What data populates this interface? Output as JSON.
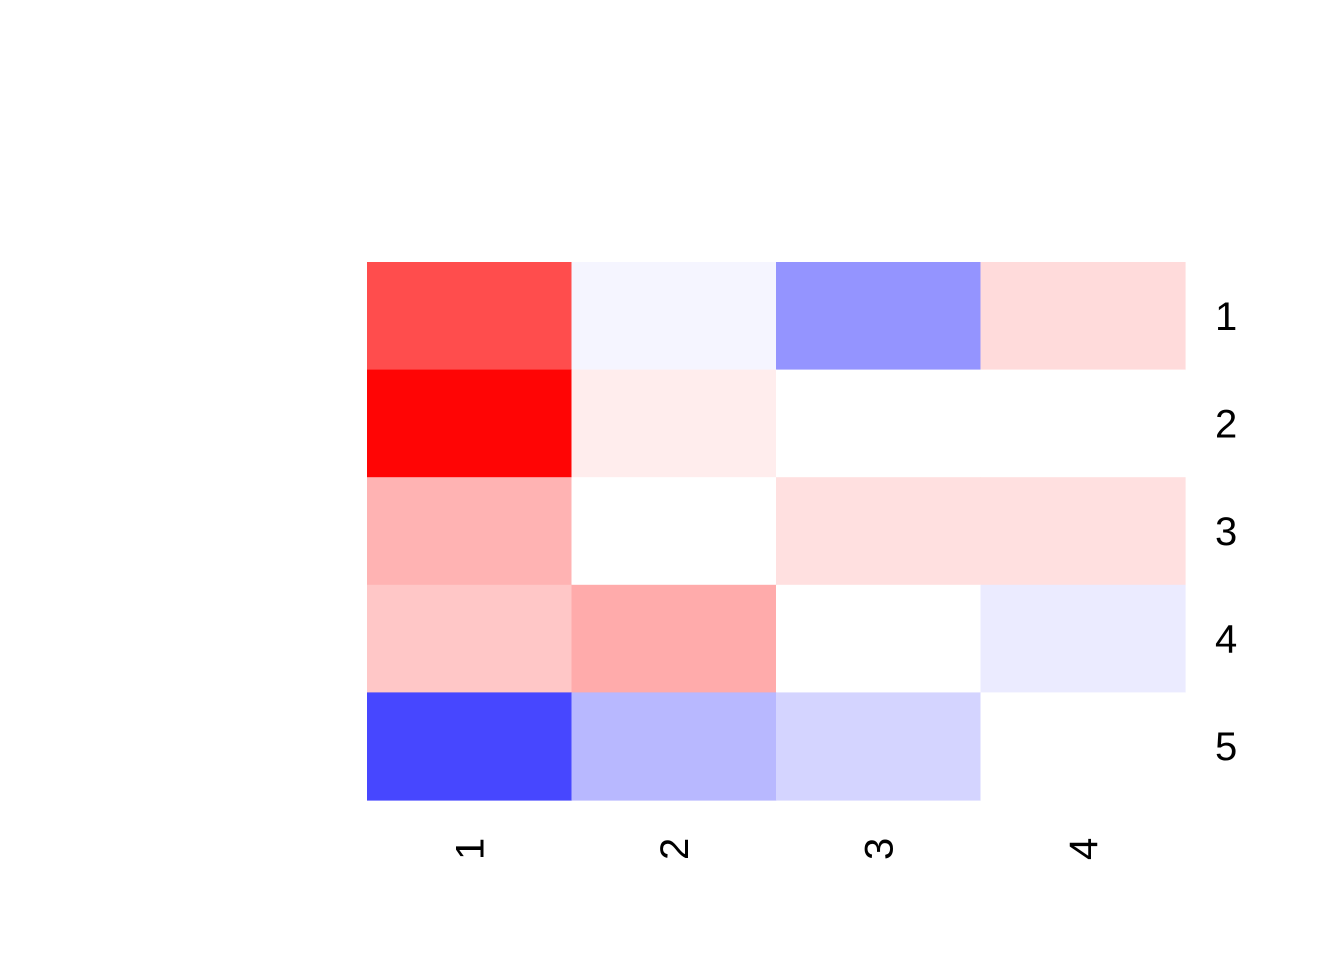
{
  "chart_data": {
    "type": "heatmap",
    "x_labels": [
      "1",
      "2",
      "3",
      "4"
    ],
    "y_labels": [
      "1",
      "2",
      "3",
      "4",
      "5"
    ],
    "values": [
      [
        0.7,
        -0.04,
        -0.42,
        0.14
      ],
      [
        0.98,
        0.07,
        0.0,
        0.0
      ],
      [
        0.3,
        0.0,
        0.12,
        0.12
      ],
      [
        0.22,
        0.33,
        0.0,
        -0.08
      ],
      [
        -0.72,
        -0.28,
        -0.17,
        0.0
      ]
    ],
    "color_scale": {
      "min": -1,
      "max": 1,
      "low_color": "#0000ff",
      "mid_color": "#ffffff",
      "high_color": "#ff0000"
    },
    "legend": "none",
    "grid": false
  }
}
